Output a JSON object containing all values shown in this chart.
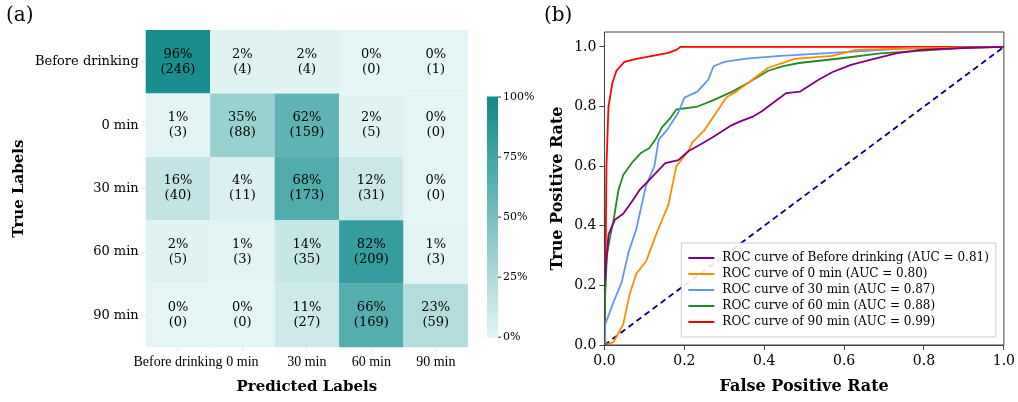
{
  "chart_data": [
    {
      "type": "heatmap",
      "title": "(a)",
      "xlabel": "Predicted Labels",
      "ylabel": "True Labels",
      "color": "#0f8a8a",
      "categories": [
        "Before drinking",
        "0 min",
        "30 min",
        "60 min",
        "90 min"
      ],
      "y_categories": [
        "Before drinking",
        "0 min",
        "30 min",
        "60 min",
        "90 min"
      ],
      "cells": [
        [
          96,
          2,
          2,
          0,
          0
        ],
        [
          1,
          35,
          62,
          2,
          0
        ],
        [
          16,
          4,
          68,
          12,
          0
        ],
        [
          2,
          1,
          14,
          82,
          1
        ],
        [
          0,
          0,
          11,
          66,
          23
        ]
      ],
      "cell_labels": [
        [
          "96%\n(246)",
          "2%\n(4)",
          "2%\n(4)",
          "0%\n(0)",
          "0%\n(1)"
        ],
        [
          "1%\n(3)",
          "35%\n(88)",
          "62%\n(159)",
          "2%\n(5)",
          "0%\n(0)"
        ],
        [
          "16%\n(40)",
          "4%\n(11)",
          "68%\n(173)",
          "12%\n(31)",
          "0%\n(0)"
        ],
        [
          "2%\n(5)",
          "1%\n(3)",
          "14%\n(35)",
          "82%\n(209)",
          "1%\n(3)"
        ],
        [
          "0%\n(0)",
          "0%\n(0)",
          "11%\n(27)",
          "66%\n(169)",
          "23%\n(59)"
        ]
      ],
      "clim": [
        0,
        100
      ],
      "cticks": [
        {
          "value": 0,
          "label": "0%"
        },
        {
          "value": 25,
          "label": "25%"
        },
        {
          "value": 50,
          "label": "50%"
        },
        {
          "value": 75,
          "label": "75%"
        },
        {
          "value": 100,
          "label": "100%"
        }
      ]
    },
    {
      "type": "line",
      "title": "(b)",
      "xlabel": "False Positive Rate",
      "ylabel": "True Positive Rate",
      "xlim": [
        0,
        1
      ],
      "ylim": [
        0,
        1.05
      ],
      "xticks": [
        {
          "value": 0,
          "label": "0.0"
        },
        {
          "value": 0.2,
          "label": "0.2"
        },
        {
          "value": 0.4,
          "label": "0.4"
        },
        {
          "value": 0.6,
          "label": "0.6"
        },
        {
          "value": 0.8,
          "label": "0.8"
        },
        {
          "value": 1,
          "label": "1.0"
        }
      ],
      "yticks": [
        {
          "value": 0,
          "label": "0.0"
        },
        {
          "value": 0.2,
          "label": "0.2"
        },
        {
          "value": 0.4,
          "label": "0.4"
        },
        {
          "value": 0.6,
          "label": "0.6"
        },
        {
          "value": 0.8,
          "label": "0.8"
        },
        {
          "value": 1,
          "label": "1.0"
        }
      ],
      "legend": "bottom right",
      "marker": "none",
      "grid": false,
      "series": [
        {
          "name": "ROC curve of Before drinking (AUC = 0.81)",
          "color": "#800080",
          "x": [
            0,
            0.01,
            0.026,
            0.047,
            0.068,
            0.088,
            0.113,
            0.152,
            0.185,
            0.21,
            0.25,
            0.275,
            0.315,
            0.34,
            0.37,
            0.395,
            0.43,
            0.455,
            0.49,
            0.536,
            0.57,
            0.617,
            0.675,
            0.73,
            0.79,
            0.93,
            1
          ],
          "values": [
            0.2,
            0.37,
            0.42,
            0.44,
            0.48,
            0.52,
            0.555,
            0.61,
            0.62,
            0.65,
            0.68,
            0.7,
            0.735,
            0.75,
            0.765,
            0.785,
            0.82,
            0.845,
            0.85,
            0.89,
            0.915,
            0.94,
            0.96,
            0.978,
            0.99,
            0.998,
            1
          ]
        },
        {
          "name": "ROC curve of 0 min (AUC = 0.80)",
          "color": "#ff8c00",
          "x": [
            0,
            0.023,
            0.047,
            0.063,
            0.08,
            0.104,
            0.132,
            0.16,
            0.18,
            0.21,
            0.22,
            0.25,
            0.275,
            0.305,
            0.33,
            0.37,
            0.41,
            0.476,
            0.57,
            0.63,
            0.77,
            1
          ],
          "values": [
            0,
            0.01,
            0.07,
            0.17,
            0.24,
            0.28,
            0.38,
            0.47,
            0.6,
            0.65,
            0.68,
            0.72,
            0.77,
            0.83,
            0.85,
            0.89,
            0.93,
            0.96,
            0.97,
            0.99,
            0.995,
            1
          ]
        },
        {
          "name": "ROC curve of 30 min (AUC = 0.87)",
          "color": "#6495ed",
          "x": [
            0,
            0.002,
            0.023,
            0.043,
            0.06,
            0.08,
            0.104,
            0.125,
            0.136,
            0.156,
            0.185,
            0.2,
            0.233,
            0.26,
            0.273,
            0.3,
            0.35,
            0.44,
            0.57,
            0.75,
            1
          ],
          "values": [
            0,
            0.07,
            0.145,
            0.21,
            0.31,
            0.39,
            0.535,
            0.6,
            0.69,
            0.72,
            0.78,
            0.83,
            0.85,
            0.89,
            0.935,
            0.95,
            0.96,
            0.97,
            0.98,
            0.994,
            1
          ]
        },
        {
          "name": "ROC curve of 60 min (AUC = 0.88)",
          "color": "#228b22",
          "x": [
            0,
            0.002,
            0.006,
            0.015,
            0.023,
            0.035,
            0.047,
            0.068,
            0.092,
            0.112,
            0.128,
            0.144,
            0.164,
            0.18,
            0.233,
            0.27,
            0.32,
            0.36,
            0.41,
            0.445,
            0.487,
            0.594,
            0.69,
            0.77,
            0.89,
            1
          ],
          "values": [
            0,
            0.17,
            0.3,
            0.37,
            0.42,
            0.52,
            0.57,
            0.61,
            0.645,
            0.66,
            0.69,
            0.73,
            0.76,
            0.79,
            0.8,
            0.82,
            0.85,
            0.88,
            0.92,
            0.935,
            0.946,
            0.962,
            0.978,
            0.985,
            0.996,
            1
          ]
        },
        {
          "name": "ROC curve of 90 min (AUC = 0.99)",
          "color": "#ff0000",
          "x": [
            0,
            0.003,
            0.005,
            0.01,
            0.02,
            0.03,
            0.05,
            0.08,
            0.12,
            0.16,
            0.18,
            0.19,
            1
          ],
          "values": [
            0,
            0.33,
            0.6,
            0.8,
            0.88,
            0.92,
            0.95,
            0.96,
            0.97,
            0.98,
            0.99,
            1,
            1
          ]
        },
        {
          "type": "line",
          "color": "#000080",
          "line_style": "dashed",
          "x": [
            0,
            1
          ],
          "values": [
            0,
            1
          ]
        }
      ]
    }
  ]
}
